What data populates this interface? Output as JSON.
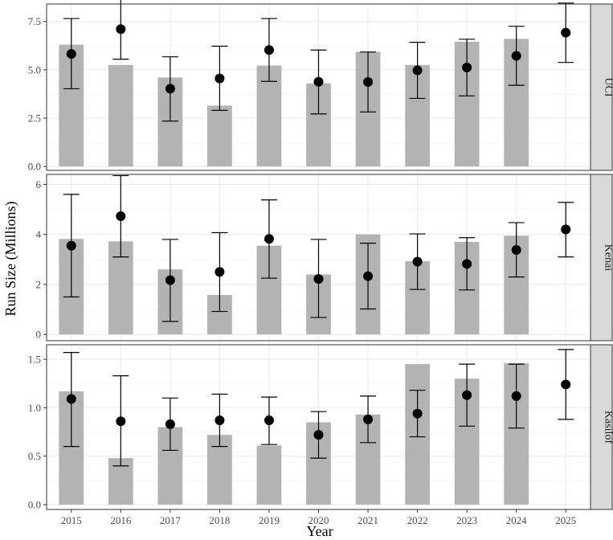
{
  "chart_data": {
    "type": "bar",
    "xlabel": "Year",
    "ylabel": "Run Size (Millions)",
    "categories": [
      "2015",
      "2016",
      "2017",
      "2018",
      "2019",
      "2020",
      "2021",
      "2022",
      "2023",
      "2024",
      "2025"
    ],
    "legend": "none",
    "grid": true,
    "colors": {
      "bar": "#b3b3b3",
      "point": "#000000",
      "strip": "#d9d9d9",
      "panel_border": "#333333",
      "grid": "#ebebeb"
    },
    "panels": [
      {
        "strip": "UCI",
        "ylim": [
          -0.2,
          8.4
        ],
        "yticks": [
          0,
          2.5,
          5,
          7.5
        ],
        "ytick_labels": [
          "0.0",
          "2.5",
          "5.0",
          "7.5"
        ],
        "bars": [
          6.3,
          5.25,
          4.6,
          3.15,
          5.22,
          4.3,
          5.93,
          5.25,
          6.45,
          6.6,
          null
        ],
        "points": [
          5.82,
          7.1,
          4.02,
          4.55,
          6.02,
          4.38,
          4.37,
          4.97,
          5.12,
          5.72,
          6.92
        ],
        "error_low": [
          4.02,
          5.55,
          2.35,
          2.9,
          4.4,
          2.72,
          2.82,
          3.52,
          3.65,
          4.2,
          5.38
        ],
        "error_high": [
          7.65,
          8.68,
          5.67,
          6.22,
          7.65,
          6.02,
          5.92,
          6.42,
          6.58,
          7.25,
          8.45
        ]
      },
      {
        "strip": "Kenai",
        "ylim": [
          -0.25,
          6.4
        ],
        "yticks": [
          0,
          2,
          4,
          6
        ],
        "ytick_labels": [
          "0",
          "2",
          "4",
          "6"
        ],
        "bars": [
          3.82,
          3.72,
          2.6,
          1.58,
          3.55,
          2.4,
          4.0,
          2.93,
          3.7,
          3.95,
          null
        ],
        "points": [
          3.55,
          4.73,
          2.17,
          2.5,
          3.82,
          2.22,
          2.33,
          2.91,
          2.82,
          3.38,
          4.2
        ],
        "error_low": [
          1.5,
          3.1,
          0.52,
          0.92,
          2.25,
          0.68,
          1.02,
          1.8,
          1.78,
          2.3,
          3.1
        ],
        "error_high": [
          5.6,
          6.35,
          3.8,
          4.07,
          5.38,
          3.8,
          3.65,
          4.02,
          3.87,
          4.47,
          5.28
        ]
      },
      {
        "strip": "Kasilof",
        "ylim": [
          -0.05,
          1.65
        ],
        "yticks": [
          0,
          0.5,
          1,
          1.5
        ],
        "ytick_labels": [
          "0.0",
          "0.5",
          "1.0",
          "1.5"
        ],
        "bars": [
          1.17,
          0.48,
          0.8,
          0.72,
          0.61,
          0.85,
          0.93,
          1.45,
          1.3,
          1.46,
          null
        ],
        "points": [
          1.09,
          0.86,
          0.83,
          0.87,
          0.87,
          0.72,
          0.88,
          0.94,
          1.13,
          1.12,
          1.24
        ],
        "error_low": [
          0.6,
          0.4,
          0.56,
          0.6,
          0.62,
          0.48,
          0.64,
          0.7,
          0.81,
          0.79,
          0.88
        ],
        "error_high": [
          1.57,
          1.33,
          1.1,
          1.14,
          1.11,
          0.96,
          1.12,
          1.18,
          1.45,
          1.45,
          1.6
        ]
      }
    ]
  }
}
